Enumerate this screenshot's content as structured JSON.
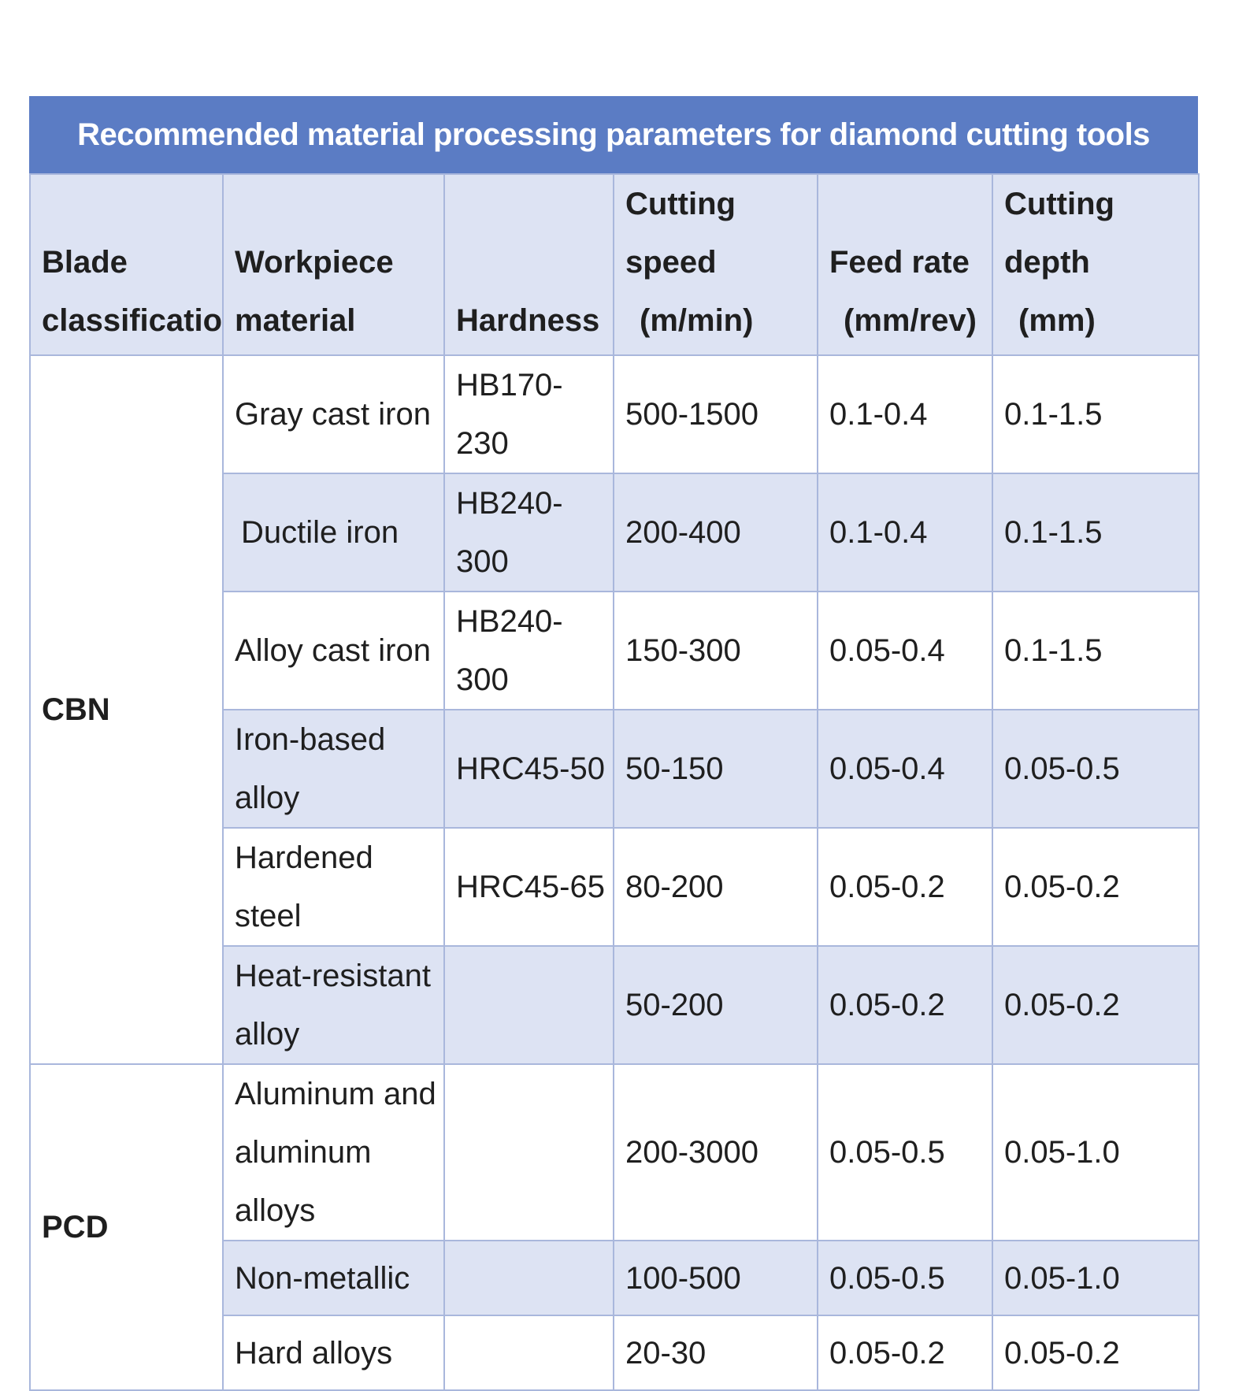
{
  "title": "Recommended material processing parameters for diamond cutting tools",
  "columns": [
    {
      "line1": "Blade",
      "line2": "classification"
    },
    {
      "line1": "Workpiece",
      "line2": "material"
    },
    {
      "line1": "",
      "line2": "Hardness"
    },
    {
      "line1": "Cutting speed",
      "line2": "(m/min)"
    },
    {
      "line1": "Feed rate",
      "line2": "(mm/rev)"
    },
    {
      "line1": "Cutting depth",
      "line2": "(mm)"
    }
  ],
  "groups": [
    {
      "blade": "CBN"
    },
    {
      "blade": "PCD"
    }
  ],
  "rows": [
    {
      "material": "Gray cast iron",
      "hardness": "HB170-230",
      "speed": "500-1500",
      "feed": "0.1-0.4",
      "depth": "0.1-1.5"
    },
    {
      "material": "Ductile iron",
      "hardness": "HB240-300",
      "speed": "200-400",
      "feed": "0.1-0.4",
      "depth": "0.1-1.5"
    },
    {
      "material": "Alloy cast iron",
      "hardness": "HB240-300",
      "speed": "150-300",
      "feed": "0.05-0.4",
      "depth": "0.1-1.5"
    },
    {
      "material": "Iron-based alloy",
      "hardness": "HRC45-50",
      "speed": "50-150",
      "feed": "0.05-0.4",
      "depth": "0.05-0.5"
    },
    {
      "material": "Hardened steel",
      "hardness": "HRC45-65",
      "speed": "80-200",
      "feed": "0.05-0.2",
      "depth": "0.05-0.2"
    },
    {
      "material_line1": "Heat-resistant",
      "material_line2": "alloy",
      "hardness": "",
      "speed": "50-200",
      "feed": "0.05-0.2",
      "depth": "0.05-0.2"
    },
    {
      "material_line1": "Aluminum and",
      "material_line2": "aluminum alloys",
      "hardness": "",
      "speed": "200-3000",
      "feed": "0.05-0.5",
      "depth": "0.05-1.0"
    },
    {
      "material": "Non-metallic",
      "hardness": "",
      "speed": "100-500",
      "feed": "0.05-0.5",
      "depth": "0.05-1.0"
    },
    {
      "material": "Hard alloys",
      "hardness": "",
      "speed": "20-30",
      "feed": "0.05-0.2",
      "depth": "0.05-0.2"
    }
  ],
  "colors": {
    "title_bg": "#5b7cc4",
    "header_bg": "#dde3f3",
    "stripe_bg": "#dde3f3",
    "border": "#a9b7dc"
  }
}
